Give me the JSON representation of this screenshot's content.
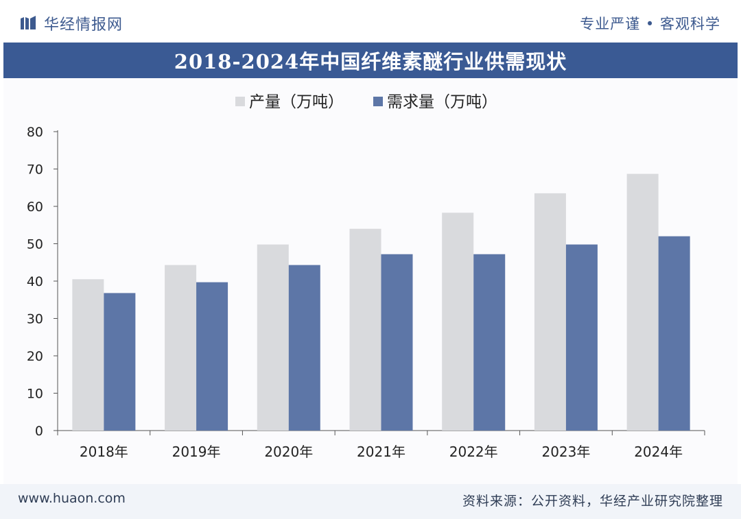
{
  "header": {
    "brand": "华经情报网",
    "slogan": "专业严谨 • 客观科学"
  },
  "footer": {
    "website": "www.huaon.com",
    "source": "资料来源：公开资料，华经产业研究院整理"
  },
  "colors": {
    "production": "#d9dadd",
    "demand": "#5d76a7",
    "title_bg": "#3a5a94",
    "brand": "#3d5a8f"
  },
  "chart_data": {
    "type": "bar",
    "title": "2018-2024年中国纤维素醚行业供需现状",
    "categories": [
      "2018年",
      "2019年",
      "2020年",
      "2021年",
      "2022年",
      "2023年",
      "2024年"
    ],
    "series": [
      {
        "name": "产量（万吨）",
        "values": [
          40.5,
          44.3,
          49.8,
          54.0,
          58.3,
          63.5,
          68.7
        ]
      },
      {
        "name": "需求量（万吨）",
        "values": [
          36.8,
          39.7,
          44.3,
          47.2,
          47.2,
          49.8,
          52.0
        ]
      }
    ],
    "yticks": [
      0,
      10,
      20,
      30,
      40,
      50,
      60,
      70,
      80
    ],
    "ylim": [
      0,
      80
    ],
    "xlabel": "",
    "ylabel": "",
    "grid": false,
    "legend_position": "top-left"
  }
}
